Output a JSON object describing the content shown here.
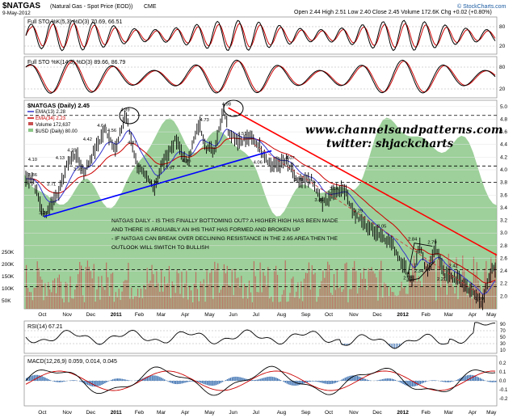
{
  "header": {
    "symbol": "$NATGAS",
    "name": "(Natural Gas - Spot Price (EOD))",
    "exchange": "CME",
    "date": "9-May-2012",
    "quote": "Open 2.44  High 2.51  Low 2.40  Close 2.45  Volume 172.6K  Chg +0.02 (+0.80%)",
    "copyright": "© StockCharts.com"
  },
  "colors": {
    "price_bar": "#000000",
    "ema13": "#3333cc",
    "ema34": "#cc0000",
    "usd_area": "#8cc888",
    "volume": "#c85050",
    "support_line": "#0000ff",
    "resistance_line": "#ff0000",
    "watermark": "#000000"
  },
  "panels": {
    "sto1": {
      "label": "Full STO %K(5,3) %D(3) 70.69, 66.51",
      "ticks": [
        "80",
        "20"
      ]
    },
    "sto2": {
      "label": "Full STO %K(14,3) %D(3) 89.66, 86.79",
      "ticks": [
        "80",
        "20"
      ]
    },
    "price": {
      "label": "$NATGAS (Daily) 2.45",
      "legend": [
        "EMA(13) 2.28",
        "EMA(34) 2.23",
        "Volume 172,637",
        "$USD (Daily) 80.00"
      ],
      "ticks": [
        "5.0",
        "4.8",
        "4.6",
        "4.4",
        "4.2",
        "4.0",
        "3.8",
        "3.6",
        "3.4",
        "3.2",
        "3.0",
        "2.8",
        "2.6",
        "2.4",
        "2.2",
        "2.0"
      ],
      "volume_ticks": [
        "250K",
        "200K",
        "150K",
        "100K",
        "50K"
      ]
    },
    "rsi": {
      "label": "RSI(14) 67.21",
      "ticks": [
        "90",
        "70",
        "50",
        "30",
        "10"
      ]
    },
    "macd": {
      "label": "MACD(12,26,9) 0.059, 0.014, 0.045",
      "ticks": [
        "0.2",
        "0.1",
        "0.0",
        "-0.1",
        "-0.2"
      ]
    }
  },
  "watermark": [
    "www.channelsandpatterns.com",
    "twitter: shjackcharts"
  ],
  "commentary": [
    "NATGAS DAILY - IS THIS FINALLY BOTTOMING OUT? A HIGHER HIGH HAS BEEN MADE",
    "AND THERE IS ARGUABLY AN IHS THAT HAS FORMED AND BROKEN UP",
    "- IF NATGAS CAN BREAK OVER DECLINING RESISTANCE IN THE 2.65 AREA THEN THE",
    "OUTLOOK WILL SWITCH TO BULLISH"
  ],
  "x_axis_labels": [
    "Oct",
    "Nov",
    "Dec",
    "2011",
    "Feb",
    "Mar",
    "Apr",
    "May",
    "Jun",
    "Jul",
    "Aug",
    "Sep",
    "Oct",
    "Nov",
    "Dec",
    "2012",
    "Feb",
    "Mar",
    "Apr",
    "May"
  ],
  "chart_data": {
    "type": "line",
    "title": "$NATGAS (Natural Gas - Spot Price (EOD)) CME",
    "ylim": [
      1.8,
      5.1
    ],
    "series": [
      {
        "name": "Close (swing points)",
        "x": [
          "2010-10-01",
          "2010-10-15",
          "2010-11-05",
          "2010-11-15",
          "2010-11-25",
          "2010-12-05",
          "2010-12-20",
          "2011-01-01",
          "2011-01-15",
          "2011-01-27",
          "2011-02-10",
          "2011-02-20",
          "2011-03-05",
          "2011-03-15",
          "2011-04-01",
          "2011-04-15",
          "2011-05-01",
          "2011-05-10",
          "2011-05-20",
          "2011-06-01",
          "2011-06-07",
          "2011-06-20",
          "2011-07-05",
          "2011-07-15",
          "2011-08-01",
          "2011-08-20",
          "2011-09-05",
          "2011-09-20",
          "2011-10-05",
          "2011-10-20",
          "2011-11-01",
          "2011-11-15",
          "2011-12-01",
          "2011-12-15",
          "2012-01-01",
          "2012-01-20",
          "2012-01-28",
          "2012-02-05",
          "2012-02-15",
          "2012-02-25",
          "2012-03-10",
          "2012-03-25",
          "2012-04-10",
          "2012-04-25",
          "2012-05-09"
        ],
        "values": [
          3.86,
          3.26,
          3.71,
          4.13,
          4.25,
          3.95,
          4.34,
          4.64,
          4.32,
          4.89,
          4.1,
          3.9,
          3.73,
          4.1,
          4.47,
          4.1,
          4.73,
          4.36,
          4.3,
          4.98,
          4.62,
          4.45,
          4.51,
          4.4,
          4.06,
          4.13,
          3.78,
          3.86,
          3.46,
          3.64,
          3.72,
          3.29,
          3.1,
          3.0,
          2.84,
          2.4,
          2.23,
          2.84,
          2.34,
          2.79,
          2.32,
          2.28,
          2.1,
          1.9,
          2.45
        ]
      },
      {
        "name": "EMA(13)",
        "last": 2.28
      },
      {
        "name": "EMA(34)",
        "last": 2.23
      }
    ],
    "annotations": [
      "4.89",
      "4.98",
      "4.64",
      "4.56",
      "4.73",
      "4.51",
      "4.42",
      "4.37",
      "4.25",
      "4.13",
      "4.10",
      "4.07",
      "4.06",
      "3.95",
      "3.86",
      "3.78",
      "3.73",
      "3.71",
      "3.64",
      "3.46",
      "3.29",
      "3.26",
      "3.05",
      "2.84",
      "2.79",
      "2.42",
      "2.34",
      "2.23",
      "2.21",
      "1.90",
      "4.06",
      "3.97"
    ],
    "indicators": {
      "full_sto_5_3": [
        70.69,
        66.51
      ],
      "full_sto_14_3": [
        89.66,
        86.79
      ],
      "rsi_14": 67.21,
      "macd_12_26_9": [
        0.059,
        0.014,
        0.045
      ],
      "volume": 172637,
      "usd_daily": 80.0
    },
    "trendlines": [
      {
        "name": "support",
        "from": [
          "2010-10-15",
          3.26
        ],
        "to": [
          "2011-08-01",
          4.3
        ]
      },
      {
        "name": "declining resistance",
        "from": [
          "2011-06-07",
          4.98
        ],
        "to": [
          "2012-05-09",
          2.65
        ]
      }
    ],
    "horizontal_levels": [
      4.86,
      4.06,
      3.8,
      2.42,
      2.15
    ]
  }
}
